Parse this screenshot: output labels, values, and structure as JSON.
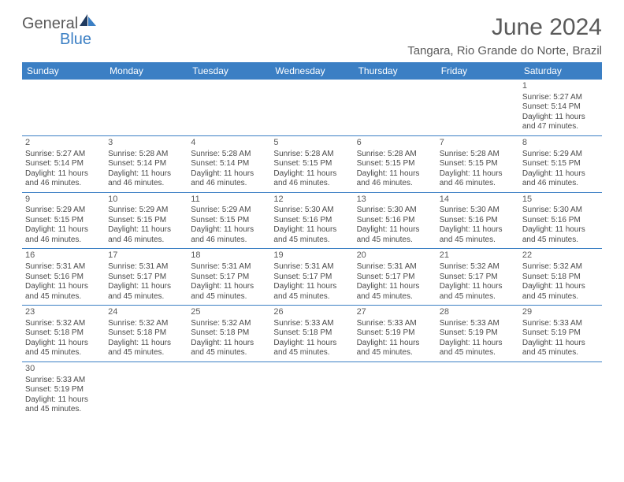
{
  "brand": {
    "name_a": "General",
    "name_b": "Blue"
  },
  "title": "June 2024",
  "location": "Tangara, Rio Grande do Norte, Brazil",
  "colors": {
    "accent": "#3b7fc4",
    "text": "#5a5a5a",
    "bg": "#ffffff"
  },
  "day_headers": [
    "Sunday",
    "Monday",
    "Tuesday",
    "Wednesday",
    "Thursday",
    "Friday",
    "Saturday"
  ],
  "weeks": [
    [
      null,
      null,
      null,
      null,
      null,
      null,
      {
        "d": "1",
        "sr": "Sunrise: 5:27 AM",
        "ss": "Sunset: 5:14 PM",
        "dl1": "Daylight: 11 hours",
        "dl2": "and 47 minutes."
      }
    ],
    [
      {
        "d": "2",
        "sr": "Sunrise: 5:27 AM",
        "ss": "Sunset: 5:14 PM",
        "dl1": "Daylight: 11 hours",
        "dl2": "and 46 minutes."
      },
      {
        "d": "3",
        "sr": "Sunrise: 5:28 AM",
        "ss": "Sunset: 5:14 PM",
        "dl1": "Daylight: 11 hours",
        "dl2": "and 46 minutes."
      },
      {
        "d": "4",
        "sr": "Sunrise: 5:28 AM",
        "ss": "Sunset: 5:14 PM",
        "dl1": "Daylight: 11 hours",
        "dl2": "and 46 minutes."
      },
      {
        "d": "5",
        "sr": "Sunrise: 5:28 AM",
        "ss": "Sunset: 5:15 PM",
        "dl1": "Daylight: 11 hours",
        "dl2": "and 46 minutes."
      },
      {
        "d": "6",
        "sr": "Sunrise: 5:28 AM",
        "ss": "Sunset: 5:15 PM",
        "dl1": "Daylight: 11 hours",
        "dl2": "and 46 minutes."
      },
      {
        "d": "7",
        "sr": "Sunrise: 5:28 AM",
        "ss": "Sunset: 5:15 PM",
        "dl1": "Daylight: 11 hours",
        "dl2": "and 46 minutes."
      },
      {
        "d": "8",
        "sr": "Sunrise: 5:29 AM",
        "ss": "Sunset: 5:15 PM",
        "dl1": "Daylight: 11 hours",
        "dl2": "and 46 minutes."
      }
    ],
    [
      {
        "d": "9",
        "sr": "Sunrise: 5:29 AM",
        "ss": "Sunset: 5:15 PM",
        "dl1": "Daylight: 11 hours",
        "dl2": "and 46 minutes."
      },
      {
        "d": "10",
        "sr": "Sunrise: 5:29 AM",
        "ss": "Sunset: 5:15 PM",
        "dl1": "Daylight: 11 hours",
        "dl2": "and 46 minutes."
      },
      {
        "d": "11",
        "sr": "Sunrise: 5:29 AM",
        "ss": "Sunset: 5:15 PM",
        "dl1": "Daylight: 11 hours",
        "dl2": "and 46 minutes."
      },
      {
        "d": "12",
        "sr": "Sunrise: 5:30 AM",
        "ss": "Sunset: 5:16 PM",
        "dl1": "Daylight: 11 hours",
        "dl2": "and 45 minutes."
      },
      {
        "d": "13",
        "sr": "Sunrise: 5:30 AM",
        "ss": "Sunset: 5:16 PM",
        "dl1": "Daylight: 11 hours",
        "dl2": "and 45 minutes."
      },
      {
        "d": "14",
        "sr": "Sunrise: 5:30 AM",
        "ss": "Sunset: 5:16 PM",
        "dl1": "Daylight: 11 hours",
        "dl2": "and 45 minutes."
      },
      {
        "d": "15",
        "sr": "Sunrise: 5:30 AM",
        "ss": "Sunset: 5:16 PM",
        "dl1": "Daylight: 11 hours",
        "dl2": "and 45 minutes."
      }
    ],
    [
      {
        "d": "16",
        "sr": "Sunrise: 5:31 AM",
        "ss": "Sunset: 5:16 PM",
        "dl1": "Daylight: 11 hours",
        "dl2": "and 45 minutes."
      },
      {
        "d": "17",
        "sr": "Sunrise: 5:31 AM",
        "ss": "Sunset: 5:17 PM",
        "dl1": "Daylight: 11 hours",
        "dl2": "and 45 minutes."
      },
      {
        "d": "18",
        "sr": "Sunrise: 5:31 AM",
        "ss": "Sunset: 5:17 PM",
        "dl1": "Daylight: 11 hours",
        "dl2": "and 45 minutes."
      },
      {
        "d": "19",
        "sr": "Sunrise: 5:31 AM",
        "ss": "Sunset: 5:17 PM",
        "dl1": "Daylight: 11 hours",
        "dl2": "and 45 minutes."
      },
      {
        "d": "20",
        "sr": "Sunrise: 5:31 AM",
        "ss": "Sunset: 5:17 PM",
        "dl1": "Daylight: 11 hours",
        "dl2": "and 45 minutes."
      },
      {
        "d": "21",
        "sr": "Sunrise: 5:32 AM",
        "ss": "Sunset: 5:17 PM",
        "dl1": "Daylight: 11 hours",
        "dl2": "and 45 minutes."
      },
      {
        "d": "22",
        "sr": "Sunrise: 5:32 AM",
        "ss": "Sunset: 5:18 PM",
        "dl1": "Daylight: 11 hours",
        "dl2": "and 45 minutes."
      }
    ],
    [
      {
        "d": "23",
        "sr": "Sunrise: 5:32 AM",
        "ss": "Sunset: 5:18 PM",
        "dl1": "Daylight: 11 hours",
        "dl2": "and 45 minutes."
      },
      {
        "d": "24",
        "sr": "Sunrise: 5:32 AM",
        "ss": "Sunset: 5:18 PM",
        "dl1": "Daylight: 11 hours",
        "dl2": "and 45 minutes."
      },
      {
        "d": "25",
        "sr": "Sunrise: 5:32 AM",
        "ss": "Sunset: 5:18 PM",
        "dl1": "Daylight: 11 hours",
        "dl2": "and 45 minutes."
      },
      {
        "d": "26",
        "sr": "Sunrise: 5:33 AM",
        "ss": "Sunset: 5:18 PM",
        "dl1": "Daylight: 11 hours",
        "dl2": "and 45 minutes."
      },
      {
        "d": "27",
        "sr": "Sunrise: 5:33 AM",
        "ss": "Sunset: 5:19 PM",
        "dl1": "Daylight: 11 hours",
        "dl2": "and 45 minutes."
      },
      {
        "d": "28",
        "sr": "Sunrise: 5:33 AM",
        "ss": "Sunset: 5:19 PM",
        "dl1": "Daylight: 11 hours",
        "dl2": "and 45 minutes."
      },
      {
        "d": "29",
        "sr": "Sunrise: 5:33 AM",
        "ss": "Sunset: 5:19 PM",
        "dl1": "Daylight: 11 hours",
        "dl2": "and 45 minutes."
      }
    ],
    [
      {
        "d": "30",
        "sr": "Sunrise: 5:33 AM",
        "ss": "Sunset: 5:19 PM",
        "dl1": "Daylight: 11 hours",
        "dl2": "and 45 minutes."
      },
      null,
      null,
      null,
      null,
      null,
      null
    ]
  ]
}
